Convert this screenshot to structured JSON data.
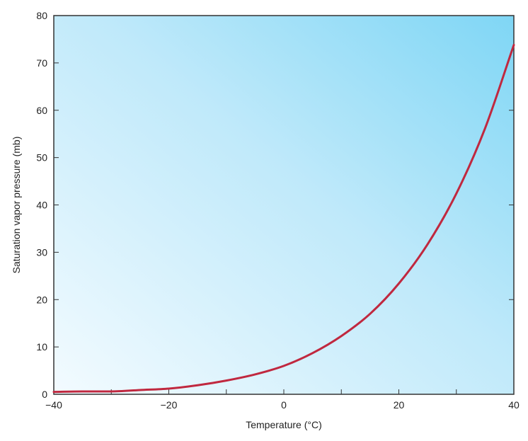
{
  "chart_data": {
    "type": "line",
    "title": "",
    "xlabel": "Temperature (°C)",
    "ylabel": "Saturation vapor pressure (mb)",
    "xlim": [
      -40,
      40
    ],
    "ylim": [
      0,
      80
    ],
    "x_ticks": [
      -40,
      -20,
      0,
      20,
      40
    ],
    "x_tick_labels": [
      "−40",
      "−20",
      "0",
      "20",
      "40"
    ],
    "y_ticks": [
      0,
      10,
      20,
      30,
      40,
      50,
      60,
      70,
      80
    ],
    "y_tick_labels": [
      "0",
      "10",
      "20",
      "30",
      "40",
      "50",
      "60",
      "70",
      "80"
    ],
    "grid": false,
    "legend": "none",
    "series": [
      {
        "color": "#c0283f",
        "x": [
          -40,
          -35,
          -30,
          -25,
          -20,
          -15,
          -10,
          -5,
          0,
          5,
          10,
          15,
          20,
          25,
          30,
          35,
          40
        ],
        "y": [
          0.5,
          0.6,
          0.6,
          0.9,
          1.2,
          1.9,
          2.9,
          4.2,
          6.0,
          8.7,
          12.3,
          17.0,
          23.4,
          31.7,
          42.4,
          56.2,
          73.8
        ]
      }
    ],
    "colors": {
      "background_light": "#f3fbff",
      "background_dark": "#7fd6f5",
      "axis": "#333333"
    }
  }
}
